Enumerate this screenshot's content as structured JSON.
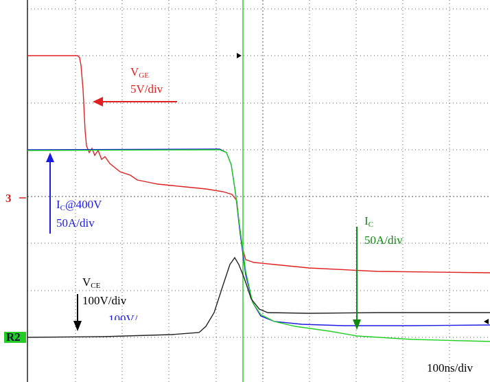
{
  "channel_marker": "3",
  "ground_marker": "R2",
  "labels": {
    "vge": {
      "symbol": "V",
      "subscript": "GE",
      "scale": "5V/div"
    },
    "ic_400": {
      "symbol": "I",
      "subscript": "C",
      "suffix": "@400V",
      "scale": "50A/div"
    },
    "ic": {
      "symbol": "I",
      "subscript": "C",
      "scale": "50A/div"
    },
    "vce": {
      "symbol": "V",
      "subscript": "CE",
      "scale": "100V/div",
      "overlap": "100V/"
    }
  },
  "timebase": "100ns/div"
}
